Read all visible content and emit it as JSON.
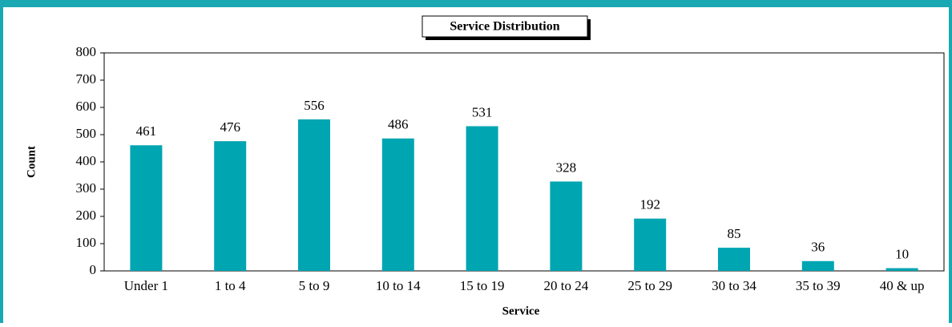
{
  "chart_data": {
    "type": "bar",
    "title": "Service Distribution",
    "xlabel": "Service",
    "ylabel": "Count",
    "categories": [
      "Under 1",
      "1 to 4",
      "5 to 9",
      "10 to 14",
      "15 to 19",
      "20 to 24",
      "25 to 29",
      "30 to 34",
      "35 to 39",
      "40 & up"
    ],
    "values": [
      461,
      476,
      556,
      486,
      531,
      328,
      192,
      85,
      36,
      10
    ],
    "color": "#00a5b2",
    "ylim": [
      0,
      800
    ],
    "yticks": [
      0,
      100,
      200,
      300,
      400,
      500,
      600,
      700,
      800
    ],
    "grid": false
  }
}
